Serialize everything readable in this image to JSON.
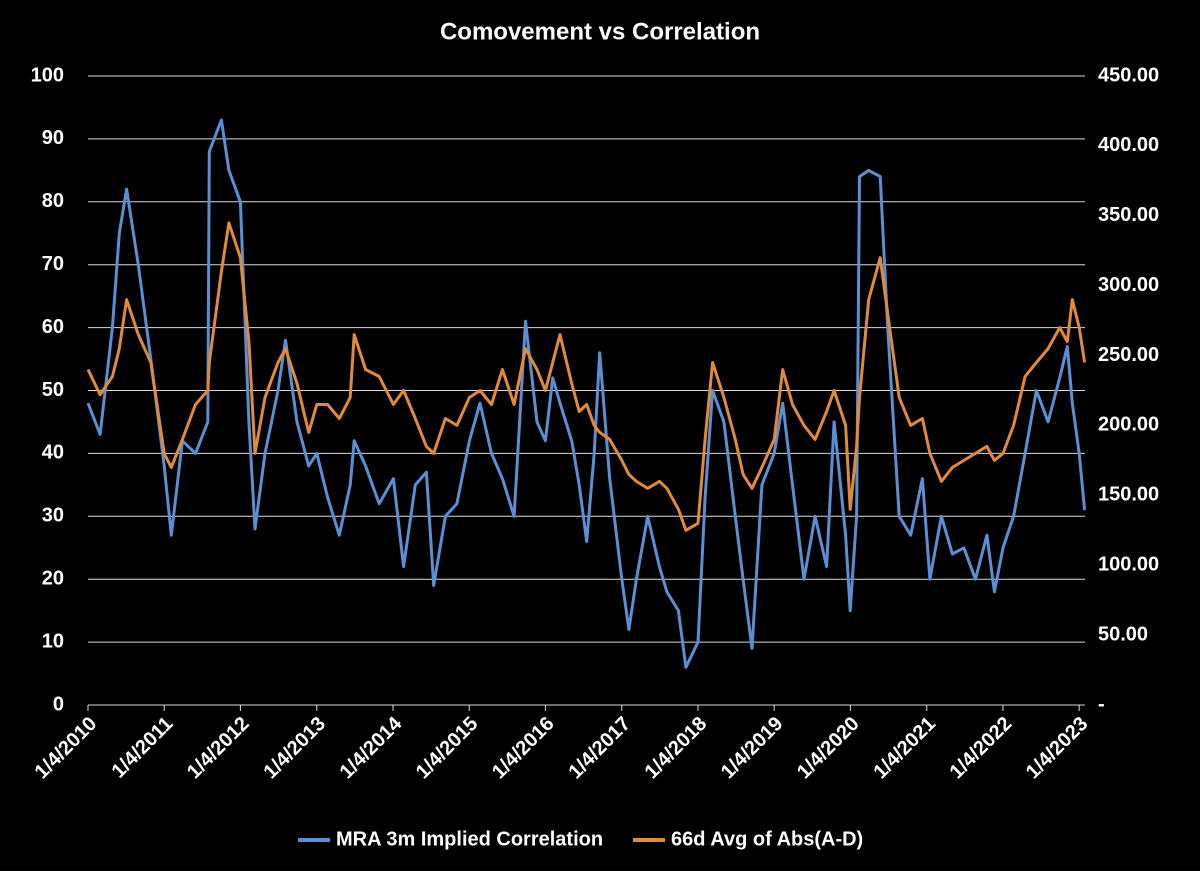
{
  "chart_data": {
    "type": "line",
    "title": "Comovement vs Correlation",
    "x": [
      "2010-01-04",
      "2010-03-03",
      "2010-05-01",
      "2010-06-03",
      "2010-07-08",
      "2010-09-02",
      "2010-11-01",
      "2011-01-04",
      "2011-02-07",
      "2011-04-01",
      "2011-06-03",
      "2011-08-01",
      "2011-08-08",
      "2011-10-05",
      "2011-11-10",
      "2012-01-04",
      "2012-02-14",
      "2012-03-14",
      "2012-05-01",
      "2012-07-02",
      "2012-08-07",
      "2012-10-01",
      "2012-11-26",
      "2013-01-04",
      "2013-02-25",
      "2013-04-22",
      "2013-06-13",
      "2013-07-02",
      "2013-08-26",
      "2013-10-30",
      "2014-01-06",
      "2014-02-24",
      "2014-04-21",
      "2014-06-13",
      "2014-07-18",
      "2014-09-12",
      "2014-11-06",
      "2015-01-05",
      "2015-02-25",
      "2015-04-21",
      "2015-06-12",
      "2015-08-07",
      "2015-10-01",
      "2015-11-25",
      "2016-01-04",
      "2016-02-08",
      "2016-03-14",
      "2016-05-09",
      "2016-06-14",
      "2016-07-20",
      "2016-08-25",
      "2016-09-20",
      "2016-11-07",
      "2017-01-04",
      "2017-02-07",
      "2017-03-15",
      "2017-05-08",
      "2017-07-03",
      "2017-08-08",
      "2017-10-02",
      "2017-11-07",
      "2018-01-04",
      "2018-02-07",
      "2018-03-15",
      "2018-05-08",
      "2018-07-02",
      "2018-08-08",
      "2018-09-20",
      "2018-11-06",
      "2019-01-04",
      "2019-02-14",
      "2019-04-02",
      "2019-05-27",
      "2019-07-19",
      "2019-09-12",
      "2019-10-18",
      "2019-12-12",
      "2020-01-03",
      "2020-02-03",
      "2020-02-17",
      "2020-04-01",
      "2020-05-26",
      "2020-07-01",
      "2020-08-25",
      "2020-10-19",
      "2020-12-14",
      "2021-01-19",
      "2021-03-15",
      "2021-05-07",
      "2021-07-01",
      "2021-08-25",
      "2021-10-19",
      "2021-11-24",
      "2022-01-04",
      "2022-02-24",
      "2022-04-20",
      "2022-06-13",
      "2022-08-08",
      "2022-10-03",
      "2022-11-08",
      "2022-12-02",
      "2023-01-04",
      "2023-01-30"
    ],
    "series": [
      {
        "name": "MRA 3m Implied Correlation",
        "color": "#5b8fd4",
        "axis": "y",
        "values": [
          48,
          43,
          60,
          75,
          82,
          70,
          55,
          38,
          27,
          42,
          40,
          45,
          88,
          93,
          85,
          80,
          45,
          28,
          40,
          50,
          58,
          45,
          38,
          40,
          33,
          27,
          35,
          42,
          38,
          32,
          36,
          22,
          35,
          37,
          19,
          30,
          32,
          42,
          48,
          40,
          36,
          30,
          61,
          45,
          42,
          52,
          48,
          42,
          35,
          26,
          40,
          56,
          36,
          20,
          12,
          20,
          30,
          22,
          18,
          15,
          6,
          10,
          33,
          50,
          45,
          30,
          20,
          9,
          35,
          40,
          48,
          35,
          20,
          30,
          22,
          45,
          27,
          15,
          30,
          84,
          85,
          84,
          60,
          30,
          27,
          36,
          20,
          30,
          24,
          25,
          20,
          27,
          18,
          25,
          30,
          40,
          50,
          45,
          52,
          57,
          48,
          40,
          31
        ]
      },
      {
        "name": "66d Avg of Abs(A-D)",
        "color": "#e08a3c",
        "axis": "y2",
        "values": [
          240,
          222,
          235,
          255,
          290,
          265,
          245,
          180,
          170,
          190,
          215,
          225,
          245,
          310,
          345,
          320,
          260,
          180,
          220,
          245,
          255,
          230,
          195,
          215,
          215,
          205,
          220,
          265,
          240,
          235,
          215,
          225,
          205,
          185,
          180,
          205,
          200,
          220,
          225,
          215,
          240,
          215,
          255,
          240,
          225,
          245,
          265,
          230,
          210,
          215,
          200,
          195,
          190,
          175,
          165,
          160,
          155,
          160,
          155,
          140,
          125,
          130,
          190,
          245,
          220,
          190,
          165,
          155,
          170,
          190,
          240,
          215,
          200,
          190,
          210,
          225,
          200,
          140,
          185,
          220,
          290,
          320,
          280,
          220,
          200,
          205,
          180,
          160,
          170,
          175,
          180,
          185,
          175,
          180,
          200,
          235,
          245,
          255,
          270,
          260,
          290,
          270,
          245
        ]
      }
    ],
    "xlim": [
      "2010-01-04",
      "2023-02-01"
    ],
    "xticks": [
      {
        "value": "2010-01-04",
        "label": "1/4/2010"
      },
      {
        "value": "2011-01-04",
        "label": "1/4/2011"
      },
      {
        "value": "2012-01-04",
        "label": "1/4/2012"
      },
      {
        "value": "2013-01-04",
        "label": "1/4/2013"
      },
      {
        "value": "2014-01-04",
        "label": "1/4/2014"
      },
      {
        "value": "2015-01-04",
        "label": "1/4/2015"
      },
      {
        "value": "2016-01-04",
        "label": "1/4/2016"
      },
      {
        "value": "2017-01-04",
        "label": "1/4/2017"
      },
      {
        "value": "2018-01-04",
        "label": "1/4/2018"
      },
      {
        "value": "2019-01-04",
        "label": "1/4/2019"
      },
      {
        "value": "2020-01-04",
        "label": "1/4/2020"
      },
      {
        "value": "2021-01-04",
        "label": "1/4/2021"
      },
      {
        "value": "2022-01-04",
        "label": "1/4/2022"
      },
      {
        "value": "2023-01-04",
        "label": "1/4/2023"
      }
    ],
    "ylim": [
      0,
      100
    ],
    "yticks": [
      0,
      10,
      20,
      30,
      40,
      50,
      60,
      70,
      80,
      90,
      100
    ],
    "y2lim": [
      0,
      450
    ],
    "y2ticks": [
      {
        "value": 0,
        "label": "-"
      },
      {
        "value": 50,
        "label": "50.00"
      },
      {
        "value": 100,
        "label": "100.00"
      },
      {
        "value": 150,
        "label": "150.00"
      },
      {
        "value": 200,
        "label": "200.00"
      },
      {
        "value": 250,
        "label": "250.00"
      },
      {
        "value": 300,
        "label": "300.00"
      },
      {
        "value": 350,
        "label": "350.00"
      },
      {
        "value": 400,
        "label": "400.00"
      },
      {
        "value": 450,
        "label": "450.00"
      }
    ],
    "grid": true
  }
}
